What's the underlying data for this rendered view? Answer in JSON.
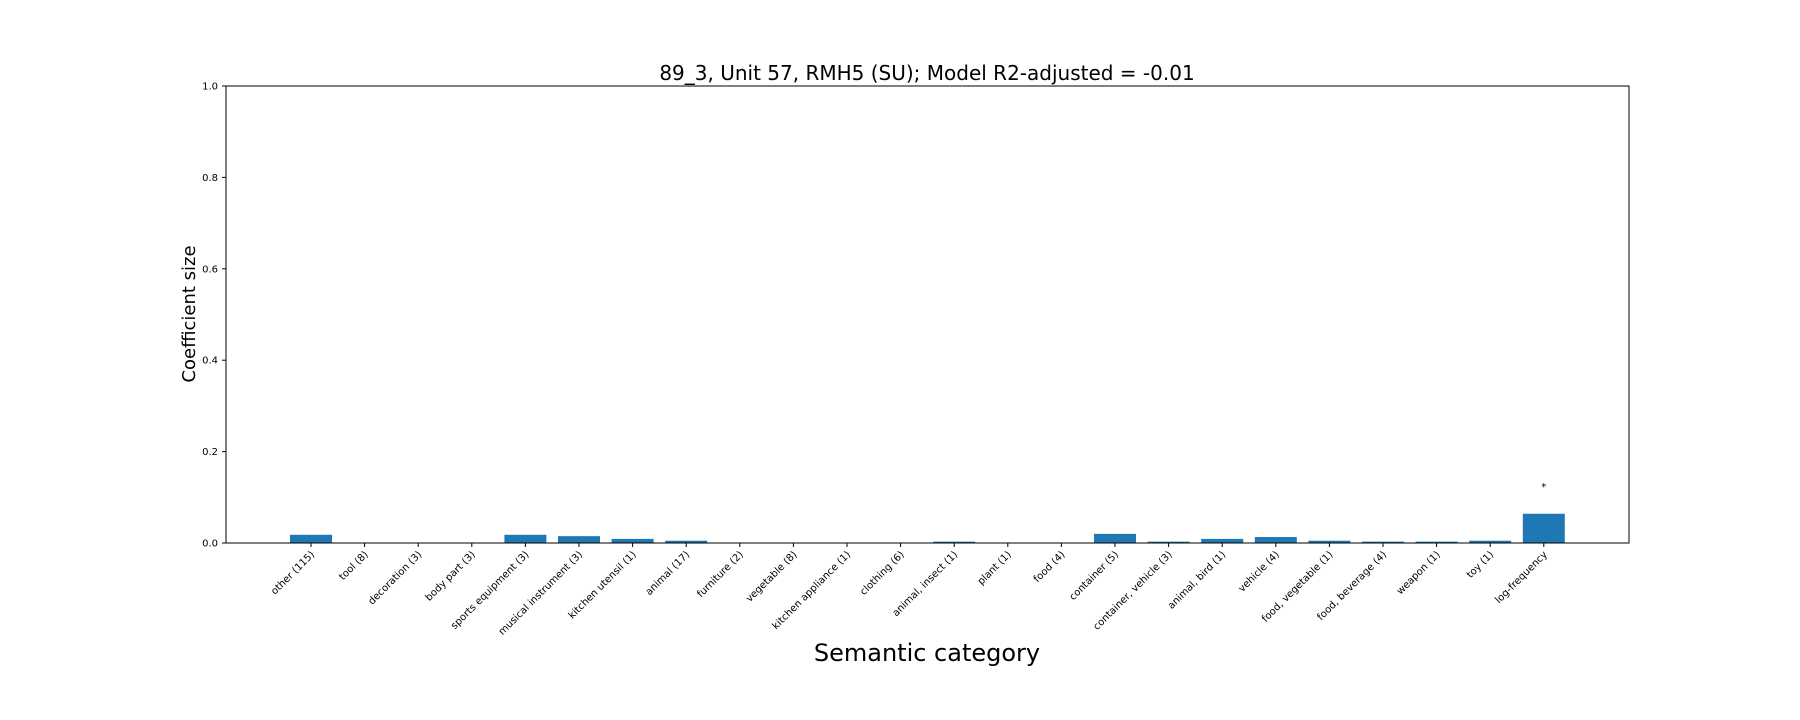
{
  "chart_data": {
    "type": "bar",
    "title": "89_3, Unit 57, RMH5 (SU); Model R2-adjusted = -0.01",
    "xlabel": "Semantic category",
    "ylabel": "Coefficient size",
    "ylim": [
      0,
      1.0
    ],
    "yticks": [
      "0.0",
      "0.2",
      "0.4",
      "0.6",
      "0.8",
      "1.0"
    ],
    "grid": false,
    "color": "#1f77b4",
    "categories": [
      "other (115)",
      "tool (8)",
      "decoration (3)",
      "body part (3)",
      "sports equipment (3)",
      "musical instrument (3)",
      "kitchen utensil (1)",
      "animal (17)",
      "furniture (2)",
      "vegetable (8)",
      "kitchen appliance (1)",
      "clothing (6)",
      "animal, insect (1)",
      "plant (1)",
      "food (4)",
      "container (5)",
      "container, vehicle (3)",
      "animal, bird (1)",
      "vehicle (4)",
      "food, vegetable (1)",
      "food, beverage (4)",
      "weapon (1)",
      "toy (1)",
      "log-frequency"
    ],
    "values": [
      0.018,
      0.0,
      0.0,
      0.0,
      0.018,
      0.015,
      0.009,
      0.005,
      0.0,
      0.0,
      0.0,
      0.0,
      0.003,
      0.0,
      0.0,
      0.02,
      0.003,
      0.009,
      0.013,
      0.005,
      0.003,
      0.003,
      0.005,
      0.064
    ],
    "annotations": [
      "",
      "",
      "",
      "",
      "",
      "",
      "",
      "",
      "",
      "",
      "",
      "",
      "",
      "",
      "",
      "",
      "",
      "",
      "",
      "",
      "",
      "",
      "",
      "*"
    ]
  }
}
